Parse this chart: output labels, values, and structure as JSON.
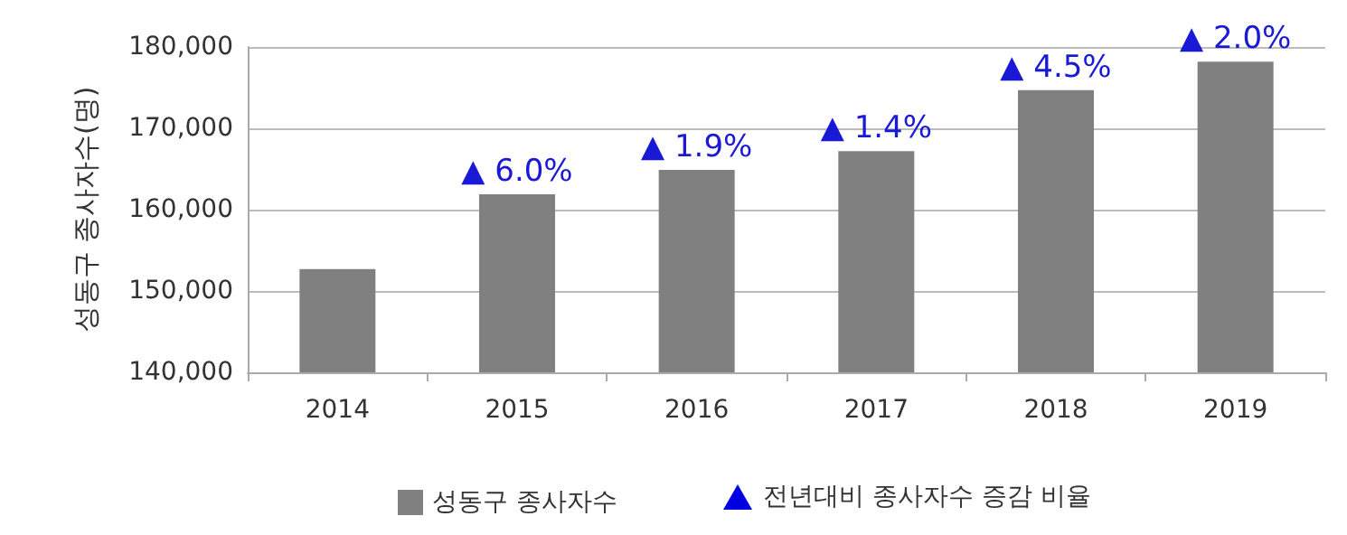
{
  "chart_data": {
    "type": "bar",
    "ylabel": "성동구 종사자수(명)",
    "categories": [
      "2014",
      "2015",
      "2016",
      "2017",
      "2018",
      "2019"
    ],
    "series": [
      {
        "name": "성동구 종사자수",
        "color": "#808080",
        "values": [
          152700,
          161900,
          164900,
          167200,
          174700,
          178200
        ]
      }
    ],
    "annotations": [
      "전년대비 종사자수 증감 비율",
      {
        "text": "▲ 6.0%",
        "x": "2015",
        "y": 161900
      },
      {
        "text": "▲ 1.9%",
        "x": "2016",
        "y": 164900
      },
      {
        "text": "▲ 1.4%",
        "x": "2017",
        "y": 167200
      },
      {
        "text": "▲ 4.5%",
        "x": "2018",
        "y": 174700
      },
      {
        "text": "▲ 2.0%",
        "x": "2019",
        "y": 178200
      }
    ],
    "ylim": [
      140000,
      180000
    ],
    "yticks": [
      {
        "value": 140000,
        "label": "140,000"
      },
      {
        "value": 150000,
        "label": "150,000"
      },
      {
        "value": 160000,
        "label": "160,000"
      },
      {
        "value": 170000,
        "label": "170,000"
      },
      {
        "value": 180000,
        "label": "180,000"
      }
    ],
    "grid": "y",
    "legend": "bottom"
  }
}
